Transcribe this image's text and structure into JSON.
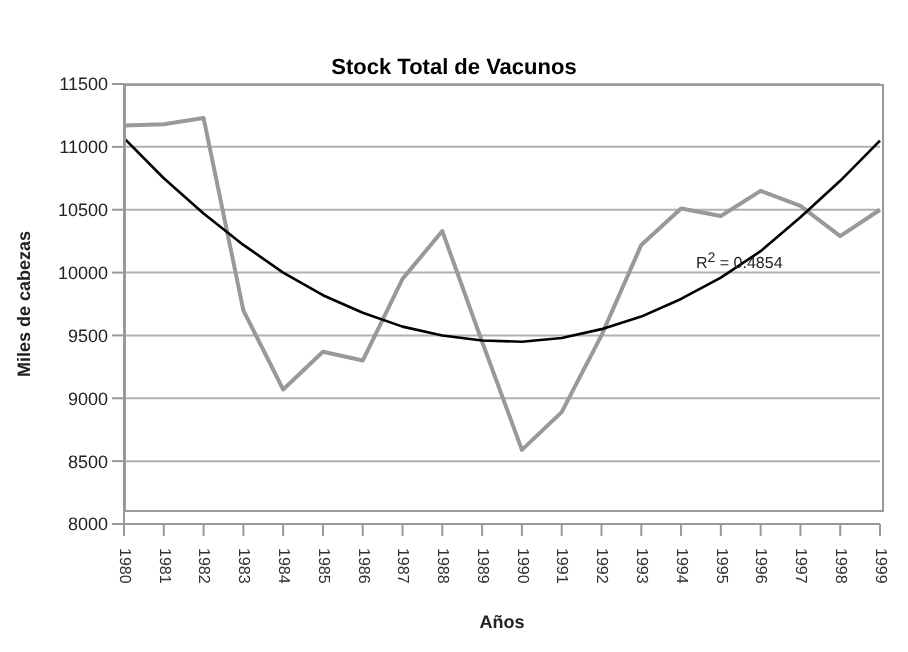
{
  "chart_data": {
    "type": "line",
    "title": "Stock Total de Vacunos",
    "xlabel": "Años",
    "ylabel": "Miles de cabezas",
    "categories": [
      "1980",
      "1981",
      "1982",
      "1983",
      "1984",
      "1985",
      "1986",
      "1987",
      "1988",
      "1989",
      "1990",
      "1991",
      "1992",
      "1993",
      "1994",
      "1995",
      "1996",
      "1997",
      "1998",
      "1999"
    ],
    "series": [
      {
        "color": "#999999",
        "values": [
          11170,
          11180,
          11230,
          9700,
          9070,
          9370,
          9300,
          9950,
          10330,
          9450,
          8590,
          8890,
          9500,
          10220,
          10510,
          10450,
          10650,
          10530,
          10290,
          10500
        ]
      },
      {
        "color": "#000000",
        "values": [
          11070,
          10750,
          10470,
          10220,
          10000,
          9820,
          9680,
          9570,
          9500,
          9460,
          9450,
          9480,
          9550,
          9650,
          9790,
          9960,
          10170,
          10440,
          10730,
          11050
        ]
      }
    ],
    "ylim": [
      8000,
      11500
    ],
    "yticks": [
      8000,
      8500,
      9000,
      9500,
      10000,
      10500,
      11000,
      11500
    ],
    "grid": "y",
    "legend": false,
    "marker": "none",
    "line_style": "solid",
    "annotations": [
      "R$^{2}$ = 0.4854"
    ]
  }
}
